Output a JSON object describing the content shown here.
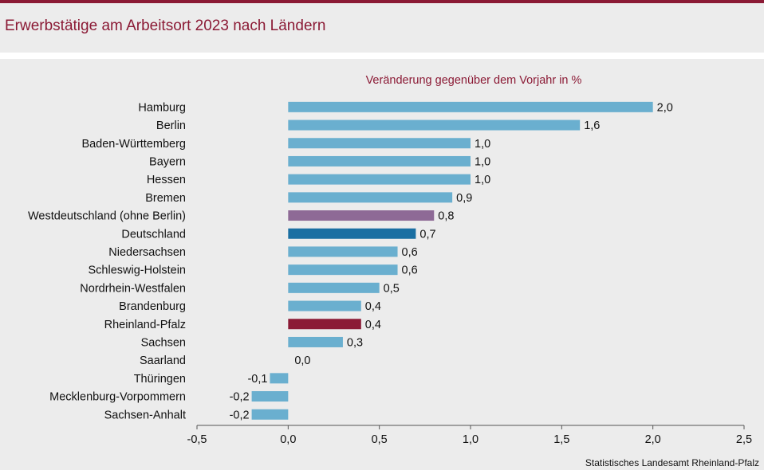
{
  "title": "Erwerbstätige am Arbeitsort 2023 nach Ländern",
  "source": "Statistisches Landesamt Rheinland-Pfalz",
  "colors": {
    "default": "#6aafcf",
    "westdeutschland": "#8e6a96",
    "deutschland": "#1a6fa2",
    "rheinland_pfalz": "#8b1a35",
    "accent": "#8b1a35"
  },
  "chart_data": {
    "type": "bar",
    "orientation": "horizontal",
    "title": "Veränderung gegenüber dem Vorjahr in %",
    "categories": [
      "Hamburg",
      "Berlin",
      "Baden-Württemberg",
      "Bayern",
      "Hessen",
      "Bremen",
      "Westdeutschland (ohne Berlin)",
      "Deutschland",
      "Niedersachsen",
      "Schleswig-Holstein",
      "Nordrhein-Westfalen",
      "Brandenburg",
      "Rheinland-Pfalz",
      "Sachsen",
      "Saarland",
      "Thüringen",
      "Mecklenburg-Vorpommern",
      "Sachsen-Anhalt"
    ],
    "values": [
      2.0,
      1.6,
      1.0,
      1.0,
      1.0,
      0.9,
      0.8,
      0.7,
      0.6,
      0.6,
      0.5,
      0.4,
      0.4,
      0.3,
      0.0,
      -0.1,
      -0.2,
      -0.2
    ],
    "value_labels": [
      "2,0",
      "1,6",
      "1,0",
      "1,0",
      "1,0",
      "0,9",
      "0,8",
      "0,7",
      "0,6",
      "0,6",
      "0,5",
      "0,4",
      "0,4",
      "0,3",
      "0,0",
      "-0,1",
      "-0,2",
      "-0,2"
    ],
    "highlight": {
      "Westdeutschland (ohne Berlin)": "westdeutschland",
      "Deutschland": "deutschland",
      "Rheinland-Pfalz": "rheinland_pfalz"
    },
    "xlim": [
      -0.5,
      2.5
    ],
    "xticks": [
      -0.5,
      0.0,
      0.5,
      1.0,
      1.5,
      2.0,
      2.5
    ],
    "xtick_labels": [
      "-0,5",
      "0,0",
      "0,5",
      "1,0",
      "1,5",
      "2,0",
      "2,5"
    ],
    "xlabel": "",
    "ylabel": "",
    "grid": false
  }
}
